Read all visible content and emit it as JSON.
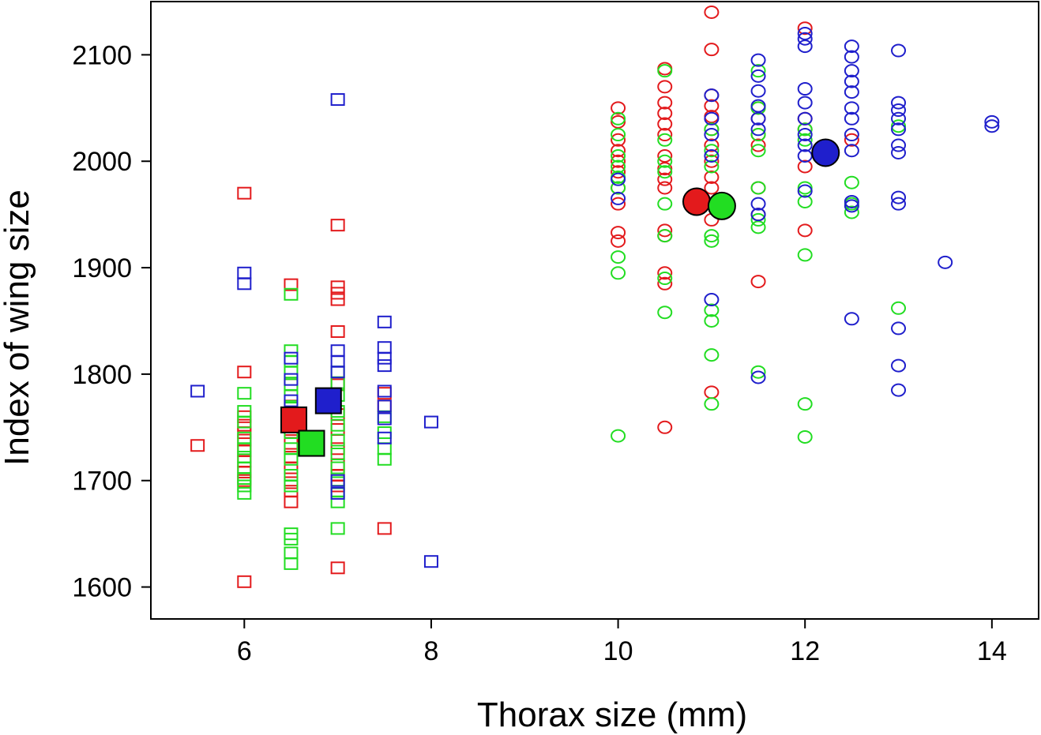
{
  "chart_data": {
    "type": "scatter",
    "title": "",
    "xlabel": "Thorax size (mm)",
    "ylabel": "Index of wing size",
    "xlim": [
      5.0,
      14.5
    ],
    "ylim": [
      1570,
      2150
    ],
    "xticks": [
      6,
      8,
      10,
      12,
      14
    ],
    "yticks": [
      1600,
      1700,
      1800,
      1900,
      2000,
      2100
    ],
    "grid": false,
    "legend": "none",
    "colors": {
      "red": "#e31a1c",
      "green": "#22dd22",
      "blue": "#1f1fcc"
    },
    "groups": [
      {
        "marker": "square",
        "color": "red",
        "points": [
          [
            5.5,
            1733
          ],
          [
            6.0,
            1970
          ],
          [
            6.0,
            1802
          ],
          [
            6.0,
            1760
          ],
          [
            6.0,
            1752
          ],
          [
            6.0,
            1745
          ],
          [
            6.0,
            1738
          ],
          [
            6.0,
            1728
          ],
          [
            6.0,
            1718
          ],
          [
            6.0,
            1708
          ],
          [
            6.0,
            1700
          ],
          [
            6.0,
            1605
          ],
          [
            6.5,
            1884
          ],
          [
            6.5,
            1790
          ],
          [
            6.5,
            1770
          ],
          [
            6.5,
            1748
          ],
          [
            6.5,
            1735
          ],
          [
            6.5,
            1722
          ],
          [
            6.5,
            1712
          ],
          [
            6.5,
            1698
          ],
          [
            6.5,
            1690
          ],
          [
            6.5,
            1680
          ],
          [
            7.0,
            1940
          ],
          [
            7.0,
            1882
          ],
          [
            7.0,
            1876
          ],
          [
            7.0,
            1870
          ],
          [
            7.0,
            1840
          ],
          [
            7.0,
            1790
          ],
          [
            7.0,
            1762
          ],
          [
            7.0,
            1748
          ],
          [
            7.0,
            1730
          ],
          [
            7.0,
            1715
          ],
          [
            7.0,
            1705
          ],
          [
            7.0,
            1695
          ],
          [
            7.0,
            1618
          ],
          [
            7.5,
            1782
          ],
          [
            7.5,
            1770
          ],
          [
            7.5,
            1655
          ]
        ]
      },
      {
        "marker": "square",
        "color": "green",
        "points": [
          [
            6.0,
            1782
          ],
          [
            6.0,
            1765
          ],
          [
            6.0,
            1755
          ],
          [
            6.0,
            1740
          ],
          [
            6.0,
            1730
          ],
          [
            6.0,
            1722
          ],
          [
            6.0,
            1712
          ],
          [
            6.0,
            1702
          ],
          [
            6.0,
            1695
          ],
          [
            6.0,
            1688
          ],
          [
            6.5,
            1875
          ],
          [
            6.5,
            1822
          ],
          [
            6.5,
            1812
          ],
          [
            6.5,
            1802
          ],
          [
            6.5,
            1790
          ],
          [
            6.5,
            1780
          ],
          [
            6.5,
            1768
          ],
          [
            6.5,
            1755
          ],
          [
            6.5,
            1745
          ],
          [
            6.5,
            1730
          ],
          [
            6.5,
            1720
          ],
          [
            6.5,
            1705
          ],
          [
            6.5,
            1695
          ],
          [
            6.5,
            1650
          ],
          [
            6.5,
            1645
          ],
          [
            6.5,
            1632
          ],
          [
            6.5,
            1622
          ],
          [
            7.0,
            1802
          ],
          [
            7.0,
            1792
          ],
          [
            7.0,
            1780
          ],
          [
            7.0,
            1765
          ],
          [
            7.0,
            1752
          ],
          [
            7.0,
            1738
          ],
          [
            7.0,
            1725
          ],
          [
            7.0,
            1712
          ],
          [
            7.0,
            1698
          ],
          [
            7.0,
            1690
          ],
          [
            7.0,
            1680
          ],
          [
            7.0,
            1655
          ],
          [
            7.5,
            1760
          ],
          [
            7.5,
            1745
          ],
          [
            7.5,
            1730
          ],
          [
            7.5,
            1720
          ]
        ]
      },
      {
        "marker": "square",
        "color": "blue",
        "points": [
          [
            5.5,
            1784
          ],
          [
            6.0,
            1895
          ],
          [
            6.0,
            1885
          ],
          [
            6.5,
            1815
          ],
          [
            6.5,
            1795
          ],
          [
            6.5,
            1775
          ],
          [
            6.5,
            1760
          ],
          [
            7.0,
            2058
          ],
          [
            7.0,
            1822
          ],
          [
            7.0,
            1812
          ],
          [
            7.0,
            1802
          ],
          [
            7.0,
            1700
          ],
          [
            7.0,
            1688
          ],
          [
            7.5,
            1849
          ],
          [
            7.5,
            1825
          ],
          [
            7.5,
            1815
          ],
          [
            7.5,
            1808
          ],
          [
            7.5,
            1784
          ],
          [
            7.5,
            1770
          ],
          [
            7.5,
            1758
          ],
          [
            7.5,
            1740
          ],
          [
            8.0,
            1755
          ],
          [
            8.0,
            1624
          ]
        ]
      },
      {
        "marker": "circle",
        "color": "red",
        "points": [
          [
            10.0,
            2050
          ],
          [
            10.0,
            2037
          ],
          [
            10.0,
            2020
          ],
          [
            10.0,
            2010
          ],
          [
            10.0,
            2000
          ],
          [
            10.0,
            1990
          ],
          [
            10.0,
            1975
          ],
          [
            10.0,
            1960
          ],
          [
            10.0,
            1933
          ],
          [
            10.0,
            1925
          ],
          [
            10.5,
            2087
          ],
          [
            10.5,
            2070
          ],
          [
            10.5,
            2055
          ],
          [
            10.5,
            2045
          ],
          [
            10.5,
            2035
          ],
          [
            10.5,
            2025
          ],
          [
            10.5,
            2005
          ],
          [
            10.5,
            1993
          ],
          [
            10.5,
            1983
          ],
          [
            10.5,
            1975
          ],
          [
            10.5,
            1935
          ],
          [
            10.5,
            1930
          ],
          [
            10.5,
            1895
          ],
          [
            10.5,
            1885
          ],
          [
            10.5,
            1750
          ],
          [
            11.0,
            2140
          ],
          [
            11.0,
            2105
          ],
          [
            11.0,
            2062
          ],
          [
            11.0,
            2052
          ],
          [
            11.0,
            2042
          ],
          [
            11.0,
            2030
          ],
          [
            11.0,
            2015
          ],
          [
            11.0,
            2000
          ],
          [
            11.0,
            1985
          ],
          [
            11.0,
            1975
          ],
          [
            11.0,
            1960
          ],
          [
            11.0,
            1945
          ],
          [
            11.0,
            1783
          ],
          [
            11.5,
            2050
          ],
          [
            11.5,
            2040
          ],
          [
            11.5,
            2025
          ],
          [
            11.5,
            2015
          ],
          [
            11.5,
            1975
          ],
          [
            11.5,
            1950
          ],
          [
            11.5,
            1887
          ],
          [
            12.0,
            2125
          ],
          [
            12.0,
            2040
          ],
          [
            12.0,
            2030
          ],
          [
            12.0,
            1995
          ],
          [
            12.0,
            1935
          ],
          [
            12.5,
            2020
          ]
        ]
      },
      {
        "marker": "circle",
        "color": "green",
        "points": [
          [
            10.0,
            2040
          ],
          [
            10.0,
            2025
          ],
          [
            10.0,
            2005
          ],
          [
            10.0,
            1995
          ],
          [
            10.0,
            1985
          ],
          [
            10.0,
            1975
          ],
          [
            10.0,
            1910
          ],
          [
            10.0,
            1895
          ],
          [
            10.0,
            1742
          ],
          [
            10.5,
            2085
          ],
          [
            10.5,
            2020
          ],
          [
            10.5,
            2000
          ],
          [
            10.5,
            1990
          ],
          [
            10.5,
            1960
          ],
          [
            10.5,
            1930
          ],
          [
            10.5,
            1890
          ],
          [
            10.5,
            1858
          ],
          [
            11.0,
            2030
          ],
          [
            11.0,
            2010
          ],
          [
            11.0,
            1995
          ],
          [
            11.0,
            1930
          ],
          [
            11.0,
            1925
          ],
          [
            11.0,
            1860
          ],
          [
            11.0,
            1850
          ],
          [
            11.0,
            1818
          ],
          [
            11.0,
            1772
          ],
          [
            11.5,
            2085
          ],
          [
            11.5,
            2050
          ],
          [
            11.5,
            2025
          ],
          [
            11.5,
            2010
          ],
          [
            11.5,
            1975
          ],
          [
            11.5,
            1945
          ],
          [
            11.5,
            1938
          ],
          [
            11.5,
            1802
          ],
          [
            12.0,
            2030
          ],
          [
            12.0,
            2020
          ],
          [
            12.0,
            1975
          ],
          [
            12.0,
            1962
          ],
          [
            12.0,
            1912
          ],
          [
            12.0,
            1772
          ],
          [
            12.0,
            1741
          ],
          [
            12.5,
            1980
          ],
          [
            12.5,
            1960
          ],
          [
            12.5,
            1952
          ],
          [
            13.0,
            2033
          ],
          [
            13.0,
            1862
          ]
        ]
      },
      {
        "marker": "circle",
        "color": "blue",
        "points": [
          [
            10.0,
            1983
          ],
          [
            10.0,
            1965
          ],
          [
            11.0,
            2062
          ],
          [
            11.0,
            2040
          ],
          [
            11.0,
            2025
          ],
          [
            11.0,
            2005
          ],
          [
            11.0,
            1870
          ],
          [
            11.5,
            2095
          ],
          [
            11.5,
            2080
          ],
          [
            11.5,
            2066
          ],
          [
            11.5,
            2052
          ],
          [
            11.5,
            2040
          ],
          [
            11.5,
            2030
          ],
          [
            11.5,
            1960
          ],
          [
            11.5,
            1950
          ],
          [
            11.5,
            1797
          ],
          [
            12.0,
            2120
          ],
          [
            12.0,
            2115
          ],
          [
            12.0,
            2108
          ],
          [
            12.0,
            2068
          ],
          [
            12.0,
            2055
          ],
          [
            12.0,
            2040
          ],
          [
            12.0,
            2025
          ],
          [
            12.0,
            2015
          ],
          [
            12.0,
            2005
          ],
          [
            12.0,
            1972
          ],
          [
            12.5,
            2108
          ],
          [
            12.5,
            2098
          ],
          [
            12.5,
            2085
          ],
          [
            12.5,
            2075
          ],
          [
            12.5,
            2065
          ],
          [
            12.5,
            2050
          ],
          [
            12.5,
            2040
          ],
          [
            12.5,
            2025
          ],
          [
            12.5,
            2010
          ],
          [
            12.5,
            1962
          ],
          [
            12.5,
            1958
          ],
          [
            12.5,
            1852
          ],
          [
            13.0,
            2104
          ],
          [
            13.0,
            2055
          ],
          [
            13.0,
            2048
          ],
          [
            13.0,
            2040
          ],
          [
            13.0,
            2030
          ],
          [
            13.0,
            2015
          ],
          [
            13.0,
            2008
          ],
          [
            13.0,
            1966
          ],
          [
            13.0,
            1960
          ],
          [
            13.0,
            1843
          ],
          [
            13.0,
            1808
          ],
          [
            13.0,
            1785
          ],
          [
            13.5,
            1905
          ],
          [
            14.0,
            2037
          ],
          [
            14.0,
            2033
          ]
        ]
      }
    ],
    "means": [
      {
        "marker": "square",
        "color": "red",
        "x": 6.53,
        "y": 1757
      },
      {
        "marker": "square",
        "color": "green",
        "x": 6.72,
        "y": 1735
      },
      {
        "marker": "square",
        "color": "blue",
        "x": 6.9,
        "y": 1775
      },
      {
        "marker": "circle",
        "color": "red",
        "x": 10.84,
        "y": 1962
      },
      {
        "marker": "circle",
        "color": "green",
        "x": 11.11,
        "y": 1958
      },
      {
        "marker": "circle",
        "color": "blue",
        "x": 12.22,
        "y": 2008
      }
    ]
  }
}
